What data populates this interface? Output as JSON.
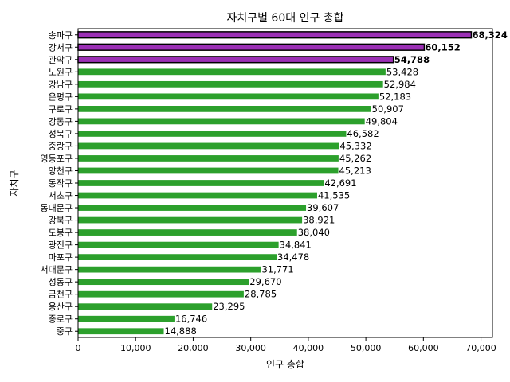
{
  "chart_data": {
    "type": "bar",
    "orientation": "horizontal",
    "title": "자치구별 60대 인구 총합",
    "xlabel": "인구 총합",
    "ylabel": "자치구",
    "xlim": [
      0,
      72000
    ],
    "xticks": [
      0,
      10000,
      20000,
      30000,
      40000,
      50000,
      60000,
      70000
    ],
    "xtick_labels": [
      "0",
      "10,000",
      "20,000",
      "30,000",
      "40,000",
      "50,000",
      "60,000",
      "70,000"
    ],
    "grid": false,
    "colors": {
      "highlight": "#9b30b5",
      "default": "#2ca02c",
      "highlight_edge": "#000000"
    },
    "categories": [
      "송파구",
      "강서구",
      "관악구",
      "노원구",
      "강남구",
      "은평구",
      "구로구",
      "강동구",
      "성북구",
      "중랑구",
      "영등포구",
      "양천구",
      "동작구",
      "서초구",
      "동대문구",
      "강북구",
      "도봉구",
      "광진구",
      "마포구",
      "서대문구",
      "성동구",
      "금천구",
      "용산구",
      "종로구",
      "중구"
    ],
    "values": [
      68324,
      60152,
      54788,
      53428,
      52984,
      52183,
      50907,
      49804,
      46582,
      45332,
      45262,
      45213,
      42691,
      41535,
      39607,
      38921,
      38040,
      34841,
      34478,
      31771,
      29670,
      28785,
      23295,
      16746,
      14888
    ],
    "value_labels": [
      "68,324",
      "60,152",
      "54,788",
      "53,428",
      "52,984",
      "52,183",
      "50,907",
      "49,804",
      "46,582",
      "45,332",
      "45,262",
      "45,213",
      "42,691",
      "41,535",
      "39,607",
      "38,921",
      "38,040",
      "34,841",
      "34,478",
      "31,771",
      "29,670",
      "28,785",
      "23,295",
      "16,746",
      "14,888"
    ],
    "highlighted": [
      true,
      true,
      true,
      false,
      false,
      false,
      false,
      false,
      false,
      false,
      false,
      false,
      false,
      false,
      false,
      false,
      false,
      false,
      false,
      false,
      false,
      false,
      false,
      false,
      false
    ]
  }
}
